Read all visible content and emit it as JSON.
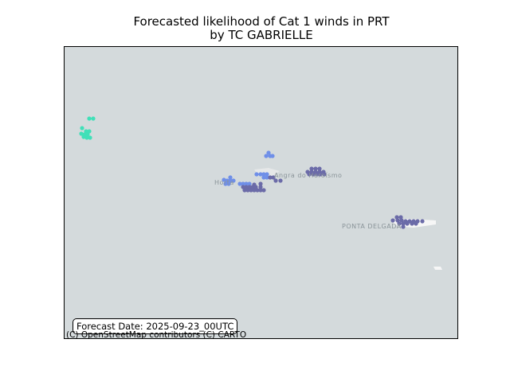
{
  "title": {
    "line1": "Forecasted likelihood of Cat 1 winds in PRT",
    "line2": "by TC GABRIELLE"
  },
  "map": {
    "place_labels": {
      "angra": "Angra do Heroísmo",
      "horta": "Horta",
      "ponta_delgada": "PONTA DELGADA"
    },
    "colors": {
      "background": "#d4dadc",
      "island": "#f6f6f6",
      "high_probability": "#6b6ba8",
      "medium_probability": "#6f8fe8",
      "low_probability": "#40e0b8"
    }
  },
  "forecast_date": "Forecast Date: 2025-09-23_00UTC",
  "attribution": "(C) OpenStreetMap contributors (C) CARTO"
}
